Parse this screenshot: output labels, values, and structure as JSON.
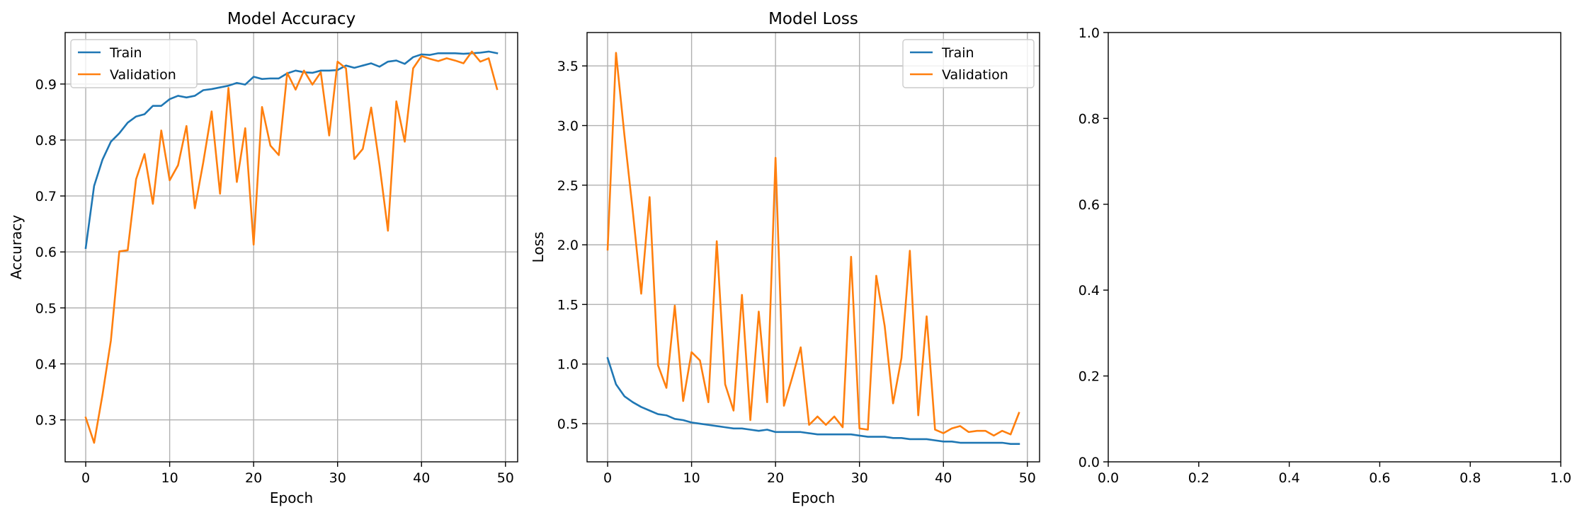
{
  "chart_data": [
    {
      "type": "line",
      "title": "Model Accuracy",
      "xlabel": "Epoch",
      "ylabel": "Accuracy",
      "xlim": [
        -2.45,
        51.45
      ],
      "ylim": [
        0.225,
        0.992
      ],
      "xticks": [
        0,
        10,
        20,
        30,
        40,
        50
      ],
      "yticks": [
        0.3,
        0.4,
        0.5,
        0.6,
        0.7,
        0.8,
        0.9
      ],
      "grid": true,
      "legend_position": "upper left",
      "series": [
        {
          "name": "Train",
          "color": "#1f77b4",
          "x": [
            0,
            1,
            2,
            3,
            4,
            5,
            6,
            7,
            8,
            9,
            10,
            11,
            12,
            13,
            14,
            15,
            16,
            17,
            18,
            19,
            20,
            21,
            22,
            23,
            24,
            25,
            26,
            27,
            28,
            29,
            30,
            31,
            32,
            33,
            34,
            35,
            36,
            37,
            38,
            39,
            40,
            41,
            42,
            43,
            44,
            45,
            46,
            47,
            48,
            49
          ],
          "values": [
            0.607,
            0.718,
            0.765,
            0.797,
            0.812,
            0.831,
            0.842,
            0.846,
            0.861,
            0.861,
            0.873,
            0.879,
            0.876,
            0.879,
            0.889,
            0.891,
            0.894,
            0.897,
            0.902,
            0.899,
            0.913,
            0.909,
            0.91,
            0.91,
            0.919,
            0.924,
            0.921,
            0.92,
            0.924,
            0.924,
            0.925,
            0.933,
            0.929,
            0.933,
            0.937,
            0.931,
            0.94,
            0.942,
            0.936,
            0.948,
            0.953,
            0.952,
            0.955,
            0.955,
            0.955,
            0.954,
            0.955,
            0.956,
            0.958,
            0.955
          ]
        },
        {
          "name": "Validation",
          "color": "#ff7f0e",
          "x": [
            0,
            1,
            2,
            3,
            4,
            5,
            6,
            7,
            8,
            9,
            10,
            11,
            12,
            13,
            14,
            15,
            16,
            17,
            18,
            19,
            20,
            21,
            22,
            23,
            24,
            25,
            26,
            27,
            28,
            29,
            30,
            31,
            32,
            33,
            34,
            35,
            36,
            37,
            38,
            39,
            40,
            41,
            42,
            43,
            44,
            45,
            46,
            47,
            48,
            49
          ],
          "values": [
            0.304,
            0.259,
            0.345,
            0.442,
            0.601,
            0.603,
            0.73,
            0.775,
            0.686,
            0.817,
            0.728,
            0.755,
            0.825,
            0.678,
            0.76,
            0.851,
            0.704,
            0.893,
            0.725,
            0.821,
            0.613,
            0.859,
            0.79,
            0.773,
            0.92,
            0.89,
            0.924,
            0.899,
            0.921,
            0.808,
            0.94,
            0.928,
            0.766,
            0.784,
            0.858,
            0.755,
            0.638,
            0.869,
            0.797,
            0.928,
            0.95,
            0.945,
            0.941,
            0.946,
            0.942,
            0.937,
            0.958,
            0.94,
            0.946,
            0.891
          ]
        }
      ]
    },
    {
      "type": "line",
      "title": "Model Loss",
      "xlabel": "Epoch",
      "ylabel": "Loss",
      "xlim": [
        -2.45,
        51.45
      ],
      "ylim": [
        0.18,
        3.78
      ],
      "xticks": [
        0,
        10,
        20,
        30,
        40,
        50
      ],
      "yticks": [
        0.5,
        1.0,
        1.5,
        2.0,
        2.5,
        3.0,
        3.5
      ],
      "ytick_labels": [
        "0.5",
        "1.0",
        "1.5",
        "2.0",
        "2.5",
        "3.0",
        "3.5"
      ],
      "grid": true,
      "legend_position": "upper right",
      "series": [
        {
          "name": "Train",
          "color": "#1f77b4",
          "x": [
            0,
            1,
            2,
            3,
            4,
            5,
            6,
            7,
            8,
            9,
            10,
            11,
            12,
            13,
            14,
            15,
            16,
            17,
            18,
            19,
            20,
            21,
            22,
            23,
            24,
            25,
            26,
            27,
            28,
            29,
            30,
            31,
            32,
            33,
            34,
            35,
            36,
            37,
            38,
            39,
            40,
            41,
            42,
            43,
            44,
            45,
            46,
            47,
            48,
            49
          ],
          "values": [
            1.05,
            0.83,
            0.73,
            0.68,
            0.64,
            0.61,
            0.58,
            0.57,
            0.54,
            0.53,
            0.51,
            0.5,
            0.49,
            0.48,
            0.47,
            0.46,
            0.46,
            0.45,
            0.44,
            0.45,
            0.43,
            0.43,
            0.43,
            0.43,
            0.42,
            0.41,
            0.41,
            0.41,
            0.41,
            0.41,
            0.4,
            0.39,
            0.39,
            0.39,
            0.38,
            0.38,
            0.37,
            0.37,
            0.37,
            0.36,
            0.35,
            0.35,
            0.34,
            0.34,
            0.34,
            0.34,
            0.34,
            0.34,
            0.33,
            0.33
          ]
        },
        {
          "name": "Validation",
          "color": "#ff7f0e",
          "x": [
            0,
            1,
            2,
            3,
            4,
            5,
            6,
            7,
            8,
            9,
            10,
            11,
            12,
            13,
            14,
            15,
            16,
            17,
            18,
            19,
            20,
            21,
            22,
            23,
            24,
            25,
            26,
            27,
            28,
            29,
            30,
            31,
            32,
            33,
            34,
            35,
            36,
            37,
            38,
            39,
            40,
            41,
            42,
            43,
            44,
            45,
            46,
            47,
            48,
            49
          ],
          "values": [
            1.96,
            3.61,
            2.92,
            2.28,
            1.59,
            2.4,
            0.99,
            0.8,
            1.49,
            0.69,
            1.1,
            1.03,
            0.68,
            2.03,
            0.83,
            0.61,
            1.58,
            0.53,
            1.44,
            0.68,
            2.73,
            0.65,
            0.89,
            1.14,
            0.49,
            0.56,
            0.49,
            0.56,
            0.47,
            1.9,
            0.46,
            0.45,
            1.74,
            1.32,
            0.67,
            1.05,
            1.95,
            0.57,
            1.4,
            0.45,
            0.42,
            0.46,
            0.48,
            0.43,
            0.44,
            0.44,
            0.4,
            0.44,
            0.41,
            0.59
          ]
        }
      ]
    },
    {
      "type": "line",
      "title": "",
      "xlabel": "",
      "ylabel": "",
      "xlim": [
        0,
        1
      ],
      "ylim": [
        0,
        1
      ],
      "xticks": [
        0,
        0.2,
        0.4,
        0.6,
        0.8,
        1.0
      ],
      "xtick_labels": [
        "0.0",
        "0.2",
        "0.4",
        "0.6",
        "0.8",
        "1.0"
      ],
      "yticks": [
        0,
        0.2,
        0.4,
        0.6,
        0.8,
        1.0
      ],
      "ytick_labels": [
        "0.0",
        "0.2",
        "0.4",
        "0.6",
        "0.8",
        "1.0"
      ],
      "grid": false,
      "series": []
    }
  ]
}
